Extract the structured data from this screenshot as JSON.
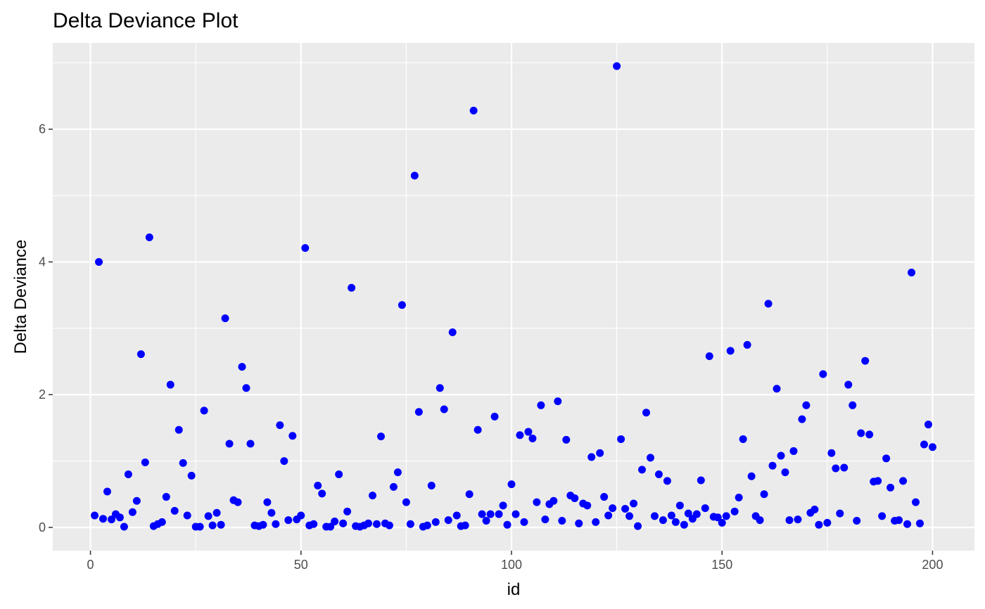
{
  "chart_data": {
    "type": "scatter",
    "title": "Delta Deviance Plot",
    "xlabel": "id",
    "ylabel": "Delta Deviance",
    "xlim": [
      -8.95,
      209.95
    ],
    "ylim": [
      -0.35,
      7.3
    ],
    "x_ticks": [
      0,
      50,
      100,
      150,
      200
    ],
    "y_ticks": [
      0,
      2,
      4,
      6
    ],
    "x_minor": [
      25,
      75,
      125,
      175
    ],
    "y_minor": [
      1,
      3,
      5,
      7
    ],
    "panel_background": "#EBEBEB",
    "grid_color": "#FFFFFF",
    "point_color": "#0000FF",
    "grid": true,
    "legend": "none",
    "x": [
      1,
      2,
      3,
      4,
      5,
      6,
      7,
      8,
      9,
      10,
      11,
      12,
      13,
      14,
      15,
      16,
      17,
      18,
      19,
      20,
      21,
      22,
      23,
      24,
      25,
      26,
      27,
      28,
      29,
      30,
      31,
      32,
      33,
      34,
      35,
      36,
      37,
      38,
      39,
      40,
      41,
      42,
      43,
      44,
      45,
      46,
      47,
      48,
      49,
      50,
      51,
      52,
      53,
      54,
      55,
      56,
      57,
      58,
      59,
      60,
      61,
      62,
      63,
      64,
      65,
      66,
      67,
      68,
      69,
      70,
      71,
      72,
      73,
      74,
      75,
      76,
      77,
      78,
      79,
      80,
      81,
      82,
      83,
      84,
      85,
      86,
      87,
      88,
      89,
      90,
      91,
      92,
      93,
      94,
      95,
      96,
      97,
      98,
      99,
      100,
      101,
      102,
      103,
      104,
      105,
      106,
      107,
      108,
      109,
      110,
      111,
      112,
      113,
      114,
      115,
      116,
      117,
      118,
      119,
      120,
      121,
      122,
      123,
      124,
      125,
      126,
      127,
      128,
      129,
      130,
      131,
      132,
      133,
      134,
      135,
      136,
      137,
      138,
      139,
      140,
      141,
      142,
      143,
      144,
      145,
      146,
      147,
      148,
      149,
      150,
      151,
      152,
      153,
      154,
      155,
      156,
      157,
      158,
      159,
      160,
      161,
      162,
      163,
      164,
      165,
      166,
      167,
      168,
      169,
      170,
      171,
      172,
      173,
      174,
      175,
      176,
      177,
      178,
      179,
      180,
      181,
      182,
      183,
      184,
      185,
      186,
      187,
      188,
      189,
      190,
      191,
      192,
      193,
      194,
      195,
      196,
      197,
      198,
      199,
      200
    ],
    "y": [
      0.18,
      4.0,
      0.13,
      0.54,
      0.12,
      0.2,
      0.15,
      0.01,
      0.8,
      0.23,
      0.4,
      2.61,
      0.98,
      4.37,
      0.02,
      0.05,
      0.08,
      0.46,
      2.15,
      0.25,
      1.47,
      0.97,
      0.18,
      0.78,
      0.01,
      0.01,
      1.76,
      0.17,
      0.03,
      0.22,
      0.04,
      3.15,
      1.26,
      0.41,
      0.38,
      2.42,
      2.1,
      1.26,
      0.03,
      0.02,
      0.04,
      0.38,
      0.22,
      0.05,
      1.54,
      1.0,
      0.11,
      1.38,
      0.12,
      0.18,
      4.21,
      0.03,
      0.05,
      0.63,
      0.51,
      0.01,
      0.01,
      0.09,
      0.8,
      0.06,
      0.24,
      3.61,
      0.02,
      0.01,
      0.03,
      0.06,
      0.48,
      0.05,
      1.37,
      0.06,
      0.03,
      0.61,
      0.83,
      3.35,
      0.38,
      0.05,
      5.3,
      1.74,
      0.01,
      0.03,
      0.63,
      0.08,
      2.1,
      1.78,
      0.11,
      2.94,
      0.18,
      0.02,
      0.03,
      0.5,
      6.28,
      1.47,
      0.2,
      0.1,
      0.2,
      1.67,
      0.2,
      0.33,
      0.04,
      0.65,
      0.2,
      1.39,
      0.08,
      1.44,
      1.34,
      0.38,
      1.84,
      0.12,
      0.35,
      0.4,
      1.9,
      0.1,
      1.32,
      0.48,
      0.44,
      0.06,
      0.36,
      0.33,
      1.06,
      0.08,
      1.12,
      0.46,
      0.18,
      0.29,
      6.95,
      1.33,
      0.28,
      0.17,
      0.36,
      0.02,
      0.87,
      1.73,
      1.05,
      0.17,
      0.8,
      0.11,
      0.7,
      0.18,
      0.08,
      0.33,
      0.04,
      0.21,
      0.13,
      0.2,
      0.71,
      0.29,
      2.58,
      0.16,
      0.15,
      0.07,
      0.17,
      2.66,
      0.24,
      0.45,
      1.33,
      2.75,
      0.77,
      0.17,
      0.11,
      0.5,
      3.37,
      0.93,
      2.09,
      1.08,
      0.83,
      0.11,
      1.15,
      0.12,
      1.63,
      1.84,
      0.22,
      0.27,
      0.04,
      2.31,
      0.07,
      1.12,
      0.89,
      0.21,
      0.9,
      2.15,
      1.84,
      0.1,
      1.42,
      2.51,
      1.4,
      0.69,
      0.7,
      0.17,
      1.04,
      0.6,
      0.1,
      0.11,
      0.7,
      0.05,
      3.84,
      0.38,
      0.06,
      1.25,
      1.55,
      1.21
    ]
  }
}
